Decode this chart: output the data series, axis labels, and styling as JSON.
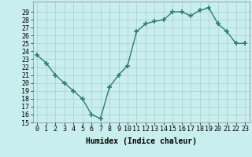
{
  "x": [
    0,
    1,
    2,
    3,
    4,
    5,
    6,
    7,
    8,
    9,
    10,
    11,
    12,
    13,
    14,
    15,
    16,
    17,
    18,
    19,
    20,
    21,
    22,
    23
  ],
  "y": [
    23.5,
    22.5,
    21.0,
    20.0,
    19.0,
    18.0,
    16.0,
    15.5,
    19.5,
    21.0,
    22.2,
    26.5,
    27.5,
    27.8,
    28.0,
    29.0,
    29.0,
    28.5,
    29.2,
    29.5,
    27.5,
    26.5,
    25.0,
    25.0
  ],
  "line_color": "#2e7d6e",
  "marker": "+",
  "marker_size": 4,
  "marker_lw": 1.2,
  "bg_color": "#c8eeee",
  "xlabel": "Humidex (Indice chaleur)",
  "ylim": [
    15,
    30
  ],
  "xlim_min": -0.5,
  "xlim_max": 23.5,
  "yticks": [
    15,
    16,
    17,
    18,
    19,
    20,
    21,
    22,
    23,
    24,
    25,
    26,
    27,
    28,
    29
  ],
  "xticks": [
    0,
    1,
    2,
    3,
    4,
    5,
    6,
    7,
    8,
    9,
    10,
    11,
    12,
    13,
    14,
    15,
    16,
    17,
    18,
    19,
    20,
    21,
    22,
    23
  ],
  "grid_color": "#aacccc",
  "line_width": 1.0,
  "tick_fontsize": 6,
  "xlabel_fontsize": 7
}
